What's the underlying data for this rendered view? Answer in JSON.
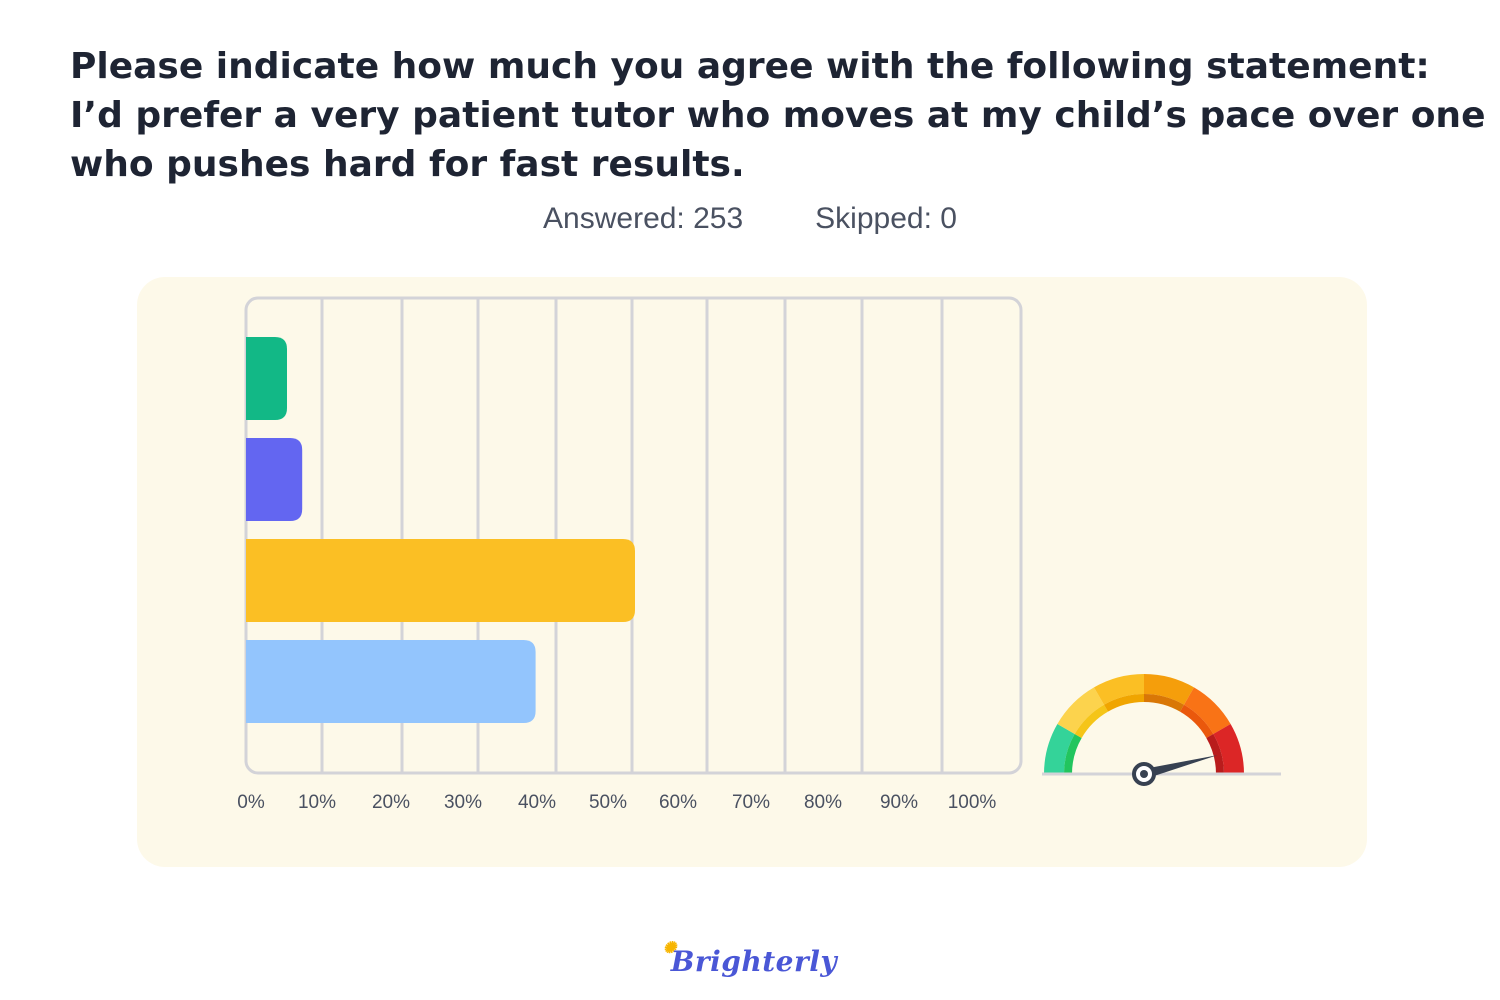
{
  "title_lines": [
    "Please indicate how much you agree with the following statement:",
    "I’d prefer a very patient tutor who moves at my child’s pace over one",
    "who pushes hard for fast results."
  ],
  "stats": {
    "answered": "Answered: 253",
    "skipped": "Skipped: 0"
  },
  "brand": "Brighterly",
  "gauge": {
    "icon": "speedometer-icon",
    "level_fraction": 0.92
  },
  "chart_data": {
    "type": "bar",
    "orientation": "horizontal",
    "categories": [
      "",
      "",
      "",
      ""
    ],
    "values": [
      5,
      7,
      50,
      37
    ],
    "colors": [
      "#12b886",
      "#6366f1",
      "#fbbf24",
      "#93c5fd"
    ],
    "xlim": [
      0,
      100
    ],
    "tick_labels": [
      "0%",
      "10%",
      "20%",
      "30%",
      "40%",
      "50%",
      "60%",
      "70%",
      "80%",
      "90%",
      "100%"
    ],
    "grid": true
  }
}
